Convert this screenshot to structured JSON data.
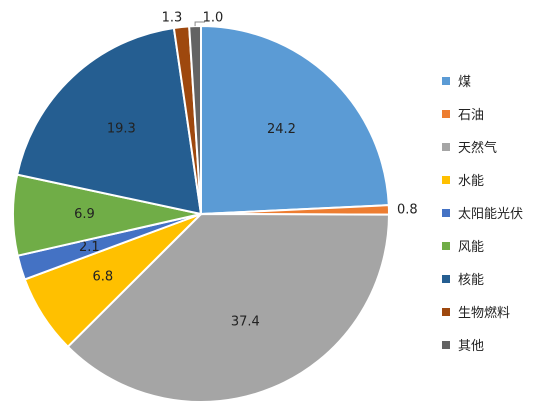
{
  "chart_data": {
    "type": "pie",
    "legend_position": "right",
    "slices": [
      {
        "name": "煤",
        "value": 24.2,
        "label": "24.2",
        "color": "#5B9BD5"
      },
      {
        "name": "石油",
        "value": 0.8,
        "label": "0.8",
        "color": "#ED7D31"
      },
      {
        "name": "天然气",
        "value": 37.4,
        "label": "37.4",
        "color": "#A5A5A5"
      },
      {
        "name": "水能",
        "value": 6.8,
        "label": "6.8",
        "color": "#FFC000"
      },
      {
        "name": "太阳能光伏",
        "value": 2.1,
        "label": "2.1",
        "color": "#4472C4"
      },
      {
        "name": "风能",
        "value": 6.9,
        "label": "6.9",
        "color": "#70AD47"
      },
      {
        "name": "核能",
        "value": 19.3,
        "label": "19.3",
        "color": "#255E91"
      },
      {
        "name": "生物燃料",
        "value": 1.3,
        "label": "1.3",
        "color": "#9E480E"
      },
      {
        "name": "其他",
        "value": 1.0,
        "label": "1.0",
        "color": "#636363"
      }
    ]
  }
}
